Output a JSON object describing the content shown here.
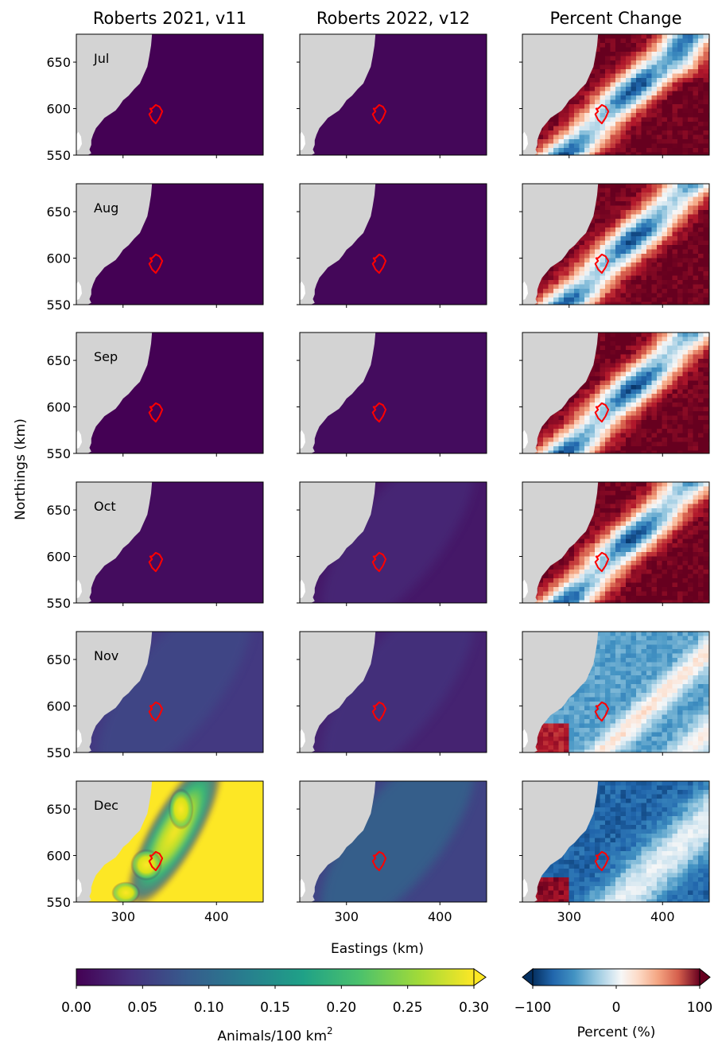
{
  "figure": {
    "ylabel": "Northings (km)",
    "xlabel": "Eastings (km)",
    "months": [
      "Jul",
      "Aug",
      "Sep",
      "Oct",
      "Nov",
      "Dec"
    ],
    "colors": {
      "land": "#d3d3d3",
      "outline": "#ff0000"
    }
  },
  "chart_data": [
    {
      "type": "heatmap",
      "title": "Roberts 2021, v11",
      "x_ticks": [
        300,
        400
      ],
      "y_ticks": [
        550,
        600,
        650
      ],
      "xlim": [
        250,
        450
      ],
      "ylim": [
        550,
        680
      ],
      "colormap": "viridis",
      "intensity_by_month": {
        "Jul": 0.0,
        "Aug": 0.0,
        "Sep": 0.0,
        "Oct": 0.01,
        "Nov": 0.05,
        "Dec": 0.3
      }
    },
    {
      "type": "heatmap",
      "title": "Roberts 2022, v12",
      "x_ticks": [
        300,
        400
      ],
      "y_ticks": [
        550,
        600,
        650
      ],
      "xlim": [
        250,
        450
      ],
      "ylim": [
        550,
        680
      ],
      "colormap": "viridis",
      "intensity_by_month": {
        "Jul": 0.005,
        "Aug": 0.005,
        "Sep": 0.01,
        "Oct": 0.02,
        "Nov": 0.03,
        "Dec": 0.06
      }
    },
    {
      "type": "heatmap",
      "title": "Percent Change",
      "x_ticks": [
        300,
        400
      ],
      "y_ticks": [
        550,
        600,
        650
      ],
      "xlim": [
        250,
        450
      ],
      "ylim": [
        550,
        680
      ],
      "colormap": "RdBu_r",
      "typical_by_month": {
        "Jul": 100,
        "Aug": 100,
        "Sep": 100,
        "Oct": 100,
        "Nov": -50,
        "Dec": -80
      }
    }
  ],
  "colorbars": [
    {
      "label": "Animals/100 km",
      "label_superscript": "2",
      "ticks": [
        "0.00",
        "0.05",
        "0.10",
        "0.15",
        "0.20",
        "0.25",
        "0.30"
      ],
      "range": [
        0,
        0.3
      ],
      "extend": "max"
    },
    {
      "label": "Percent (%)",
      "ticks": [
        "−100",
        "0",
        "100"
      ],
      "range": [
        -100,
        100
      ],
      "extend": "both"
    }
  ]
}
